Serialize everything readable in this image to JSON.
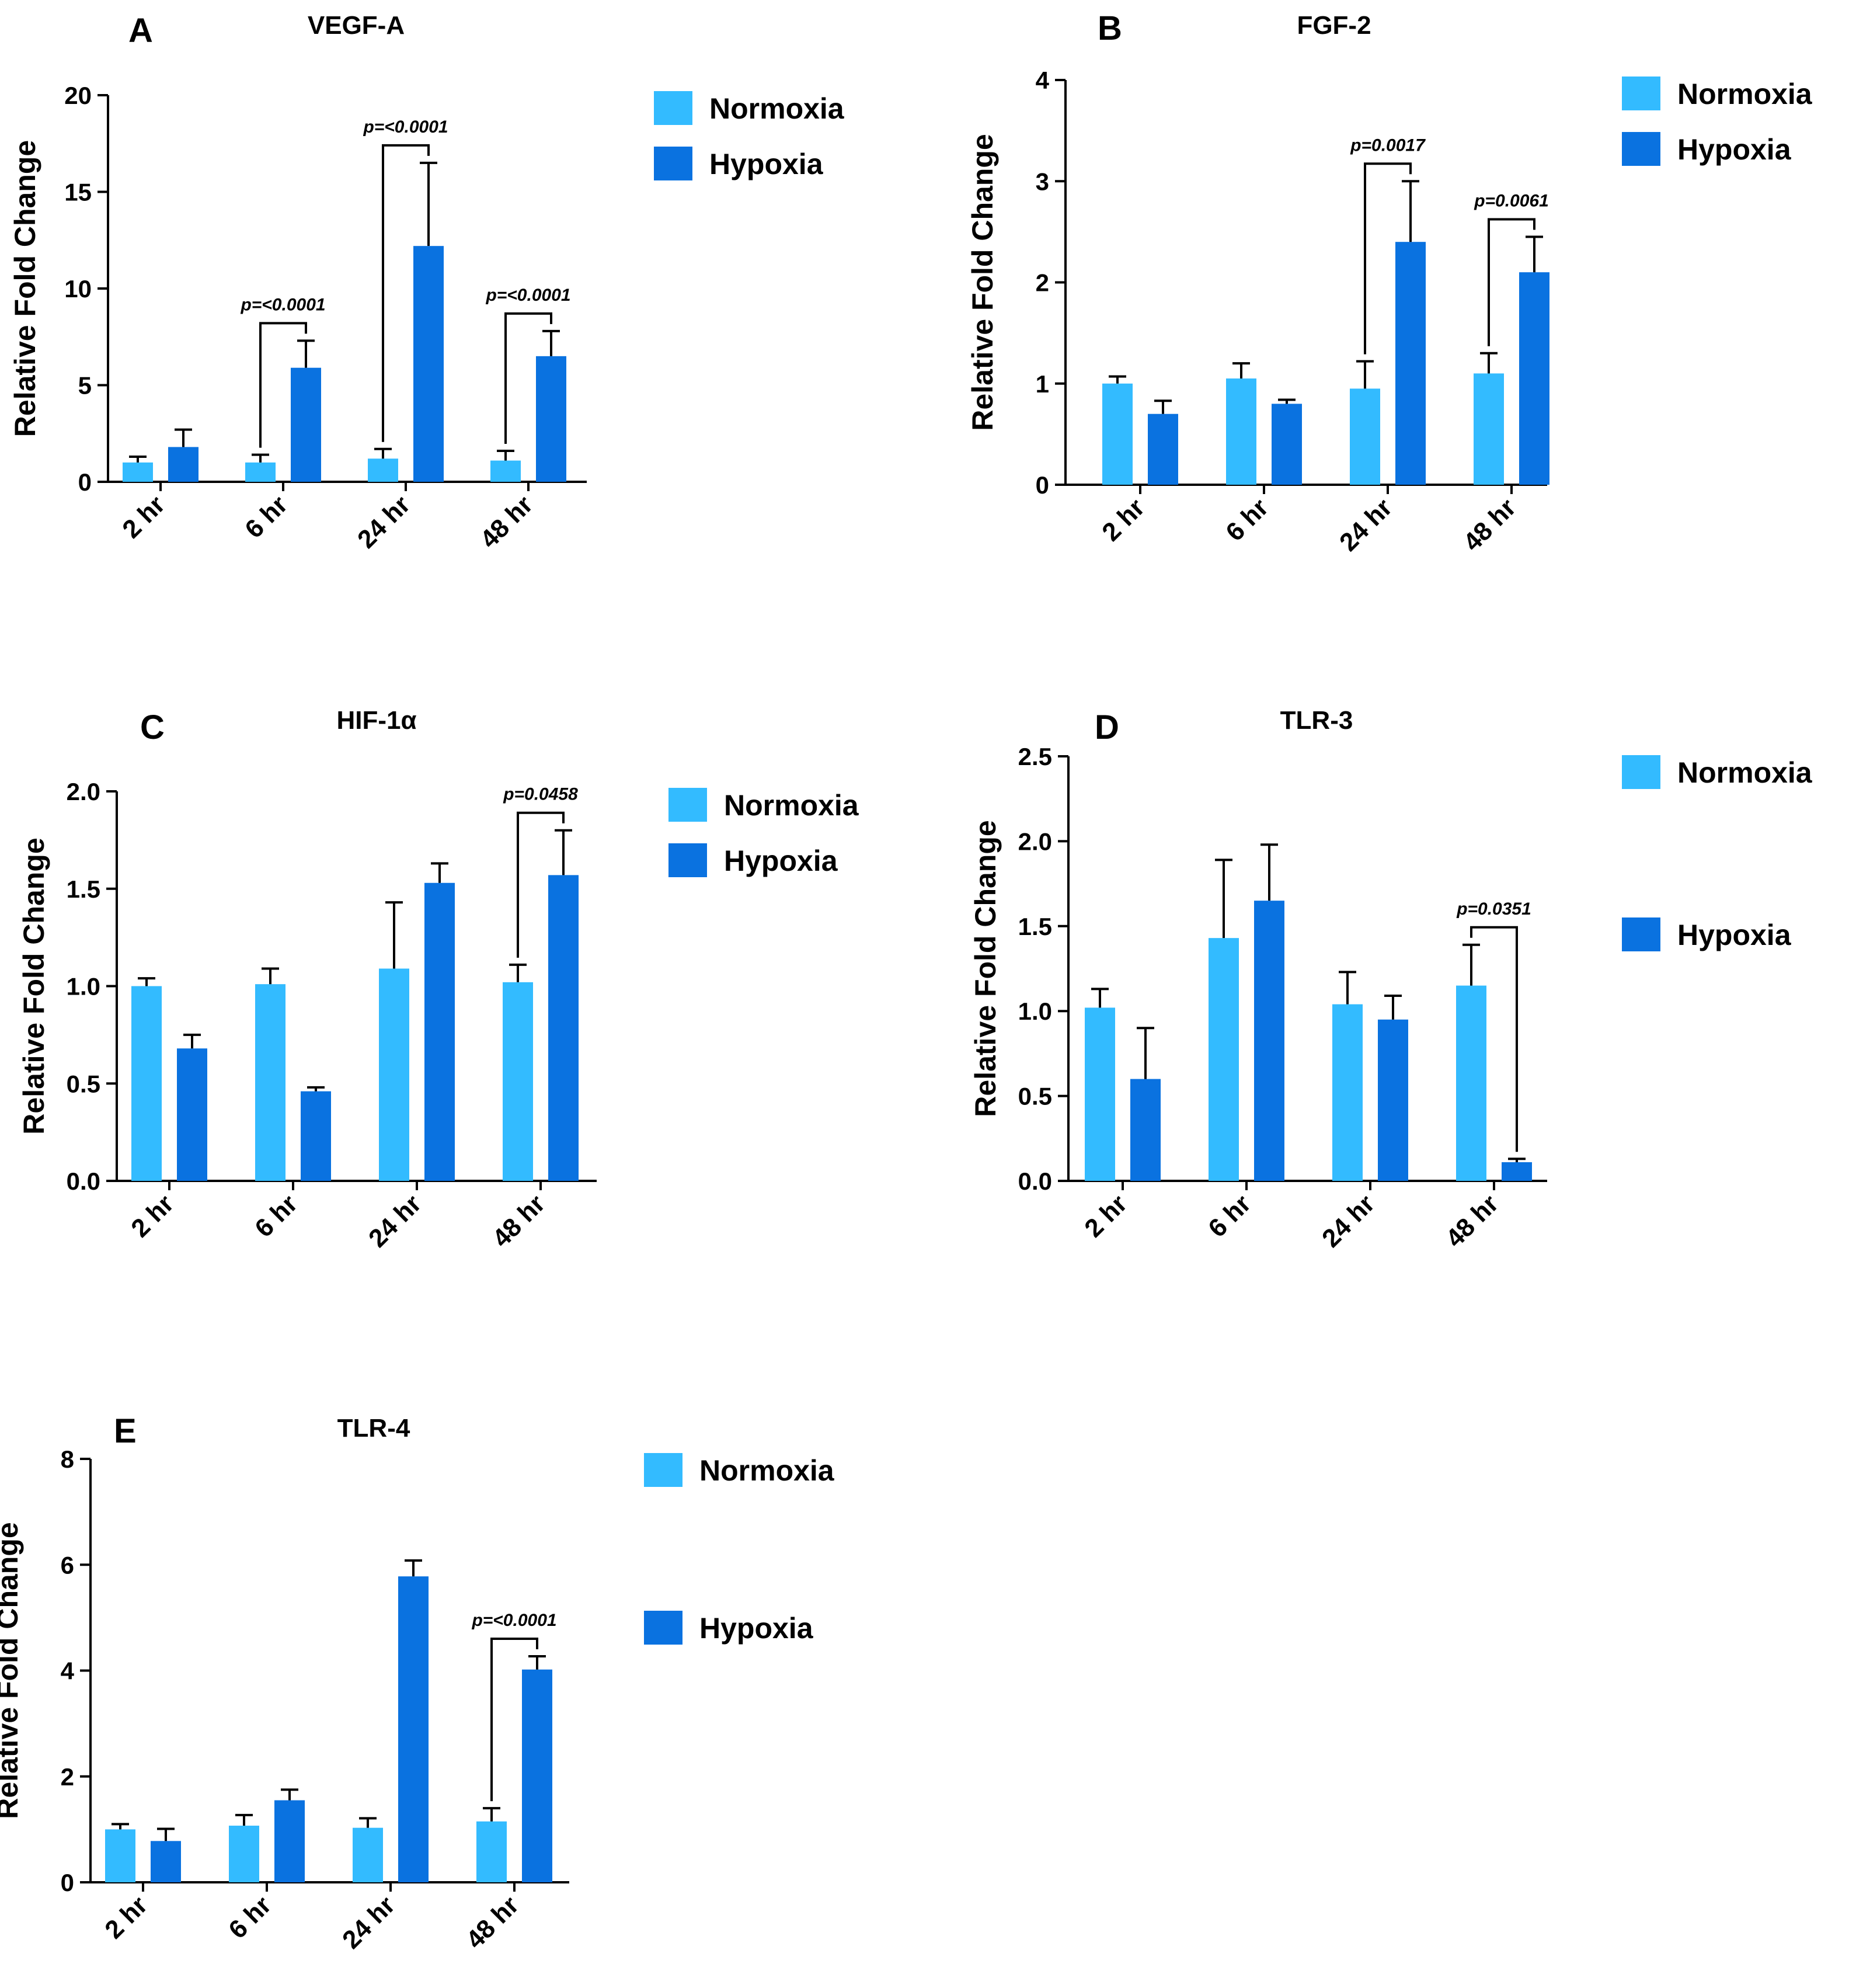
{
  "colors": {
    "normoxia": "#33BBFF",
    "hypoxia": "#0A72E0",
    "axis": "#000000"
  },
  "legend": {
    "normoxia": "Normoxia",
    "hypoxia": "Hypoxia"
  },
  "chart_data": [
    {
      "type": "bar",
      "panel": "A",
      "title": "VEGF-A",
      "xlabel": "",
      "ylabel": "Relative Fold Change",
      "categories": [
        "2 hr",
        "6 hr",
        "24 hr",
        "48 hr"
      ],
      "ylim": [
        0,
        20
      ],
      "yticks": [
        0,
        5,
        10,
        15,
        20
      ],
      "yticklabels": [
        "0",
        "5",
        "10",
        "15",
        "20"
      ],
      "series": [
        {
          "name": "Normoxia",
          "values": [
            1.0,
            1.0,
            1.2,
            1.1
          ],
          "errors": [
            0.3,
            0.4,
            0.5,
            0.5
          ]
        },
        {
          "name": "Hypoxia",
          "values": [
            1.8,
            5.9,
            12.2,
            6.5
          ],
          "errors": [
            0.9,
            1.4,
            4.3,
            1.3
          ]
        }
      ],
      "annotations": [
        {
          "text": "p=<0.0001",
          "category": 1
        },
        {
          "text": "p=<0.0001",
          "category": 2
        },
        {
          "text": "p=<0.0001",
          "category": 3
        }
      ]
    },
    {
      "type": "bar",
      "panel": "B",
      "title": "FGF-2",
      "xlabel": "",
      "ylabel": "Relative Fold Change",
      "categories": [
        "2 hr",
        "6 hr",
        "24 hr",
        "48 hr"
      ],
      "ylim": [
        0,
        4
      ],
      "yticks": [
        0,
        1,
        2,
        3,
        4
      ],
      "yticklabels": [
        "0",
        "1",
        "2",
        "3",
        "4"
      ],
      "series": [
        {
          "name": "Normoxia",
          "values": [
            1.0,
            1.05,
            0.95,
            1.1
          ],
          "errors": [
            0.07,
            0.15,
            0.27,
            0.2
          ]
        },
        {
          "name": "Hypoxia",
          "values": [
            0.7,
            0.8,
            2.4,
            2.1
          ],
          "errors": [
            0.13,
            0.04,
            0.6,
            0.35
          ]
        }
      ],
      "annotations": [
        {
          "text": "p=0.0017",
          "category": 2
        },
        {
          "text": "p=0.0061",
          "category": 3
        }
      ]
    },
    {
      "type": "bar",
      "panel": "C",
      "title": "HIF-1α",
      "xlabel": "",
      "ylabel": "Relative Fold Change",
      "categories": [
        "2 hr",
        "6 hr",
        "24 hr",
        "48 hr"
      ],
      "ylim": [
        0,
        2
      ],
      "yticks": [
        0,
        0.5,
        1,
        1.5,
        2
      ],
      "yticklabels": [
        "0.0",
        "0.5",
        "1.0",
        "1.5",
        "2.0"
      ],
      "series": [
        {
          "name": "Normoxia",
          "values": [
            1.0,
            1.01,
            1.09,
            1.02
          ],
          "errors": [
            0.04,
            0.08,
            0.34,
            0.09
          ]
        },
        {
          "name": "Hypoxia",
          "values": [
            0.68,
            0.46,
            1.53,
            1.57
          ],
          "errors": [
            0.07,
            0.02,
            0.1,
            0.23
          ]
        }
      ],
      "annotations": [
        {
          "text": "p=0.0458",
          "category": 3
        }
      ]
    },
    {
      "type": "bar",
      "panel": "D",
      "title": "TLR-3",
      "xlabel": "",
      "ylabel": "Relative Fold Change",
      "categories": [
        "2 hr",
        "6 hr",
        "24 hr",
        "48 hr"
      ],
      "ylim": [
        0,
        2.5
      ],
      "yticks": [
        0,
        0.5,
        1,
        1.5,
        2,
        2.5
      ],
      "yticklabels": [
        "0.0",
        "0.5",
        "1.0",
        "1.5",
        "2.0",
        "2.5"
      ],
      "series": [
        {
          "name": "Normoxia",
          "values": [
            1.02,
            1.43,
            1.04,
            1.15
          ],
          "errors": [
            0.11,
            0.46,
            0.19,
            0.24
          ]
        },
        {
          "name": "Hypoxia",
          "values": [
            0.6,
            1.65,
            0.95,
            0.11
          ],
          "errors": [
            0.3,
            0.33,
            0.14,
            0.02
          ]
        }
      ],
      "annotations": [
        {
          "text": "p=0.0351",
          "category": 3
        }
      ]
    },
    {
      "type": "bar",
      "panel": "E",
      "title": "TLR-4",
      "xlabel": "",
      "ylabel": "Relative Fold Change",
      "categories": [
        "2 hr",
        "6 hr",
        "24 hr",
        "48 hr"
      ],
      "ylim": [
        0,
        8
      ],
      "yticks": [
        0,
        2,
        4,
        6,
        8
      ],
      "yticklabels": [
        "0",
        "2",
        "4",
        "6",
        "8"
      ],
      "series": [
        {
          "name": "Normoxia",
          "values": [
            1.0,
            1.07,
            1.03,
            1.15
          ],
          "errors": [
            0.1,
            0.2,
            0.18,
            0.25
          ]
        },
        {
          "name": "Hypoxia",
          "values": [
            0.78,
            1.55,
            5.78,
            4.02
          ],
          "errors": [
            0.23,
            0.2,
            0.3,
            0.25
          ]
        }
      ],
      "annotations": [
        {
          "text": "p=<0.0001",
          "category": 3
        }
      ]
    }
  ]
}
